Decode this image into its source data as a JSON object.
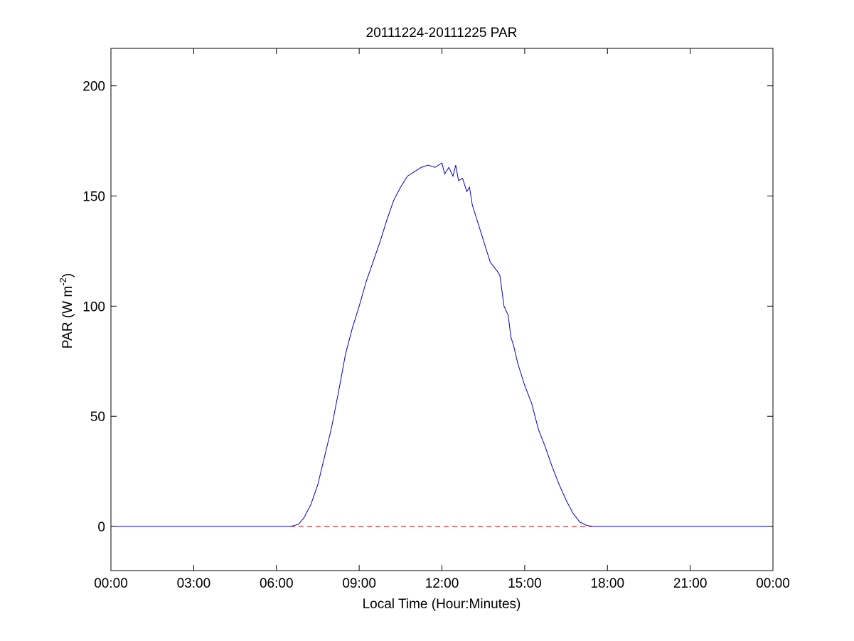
{
  "chart_data": {
    "type": "line",
    "title": "20111224-20111225 PAR",
    "xlabel": "Local Time (Hour:Minutes)",
    "ylabel_main": "PAR (W m",
    "ylabel_sup": "-2",
    "ylabel_close": ")",
    "x_unit": "hours",
    "xlim": [
      0,
      24
    ],
    "ylim": [
      -20,
      217
    ],
    "x_ticks": [
      0,
      3,
      6,
      9,
      12,
      15,
      18,
      21,
      24
    ],
    "x_tick_labels": [
      "00:00",
      "03:00",
      "06:00",
      "09:00",
      "12:00",
      "15:00",
      "18:00",
      "21:00",
      "00:00"
    ],
    "y_ticks": [
      0,
      50,
      100,
      150,
      200
    ],
    "y_tick_labels": [
      "0",
      "50",
      "100",
      "150",
      "200"
    ],
    "grid": false,
    "series": [
      {
        "color": "#0000cc",
        "style": "solid",
        "x": [
          0,
          6.5,
          6.8,
          7.0,
          7.25,
          7.5,
          7.75,
          8.0,
          8.25,
          8.5,
          8.75,
          9.0,
          9.25,
          9.5,
          9.75,
          10.0,
          10.25,
          10.5,
          10.75,
          11.0,
          11.25,
          11.5,
          11.75,
          12.0,
          12.1,
          12.25,
          12.4,
          12.5,
          12.6,
          12.75,
          12.9,
          13.0,
          13.1,
          13.25,
          13.5,
          13.75,
          14.0,
          14.1,
          14.25,
          14.4,
          14.5,
          14.6,
          14.75,
          15.0,
          15.25,
          15.5,
          15.75,
          16.0,
          16.25,
          16.5,
          16.75,
          17.0,
          17.25,
          17.4,
          17.5,
          24
        ],
        "y": [
          0,
          0,
          1,
          4,
          10,
          19,
          32,
          45,
          61,
          78,
          90,
          100,
          111,
          120,
          129,
          139,
          148,
          154,
          159,
          161,
          163,
          164,
          163,
          165,
          160,
          163,
          159,
          164,
          157,
          158,
          152,
          154,
          146,
          140,
          130,
          120,
          116,
          114,
          100,
          96,
          86,
          82,
          74,
          64,
          56,
          44,
          36,
          27,
          19,
          12,
          6,
          2,
          0.5,
          0.2,
          0,
          0
        ]
      },
      {
        "color": "#cc0000",
        "style": "dashed",
        "x": [
          0,
          24
        ],
        "y": [
          0,
          0
        ]
      }
    ]
  }
}
